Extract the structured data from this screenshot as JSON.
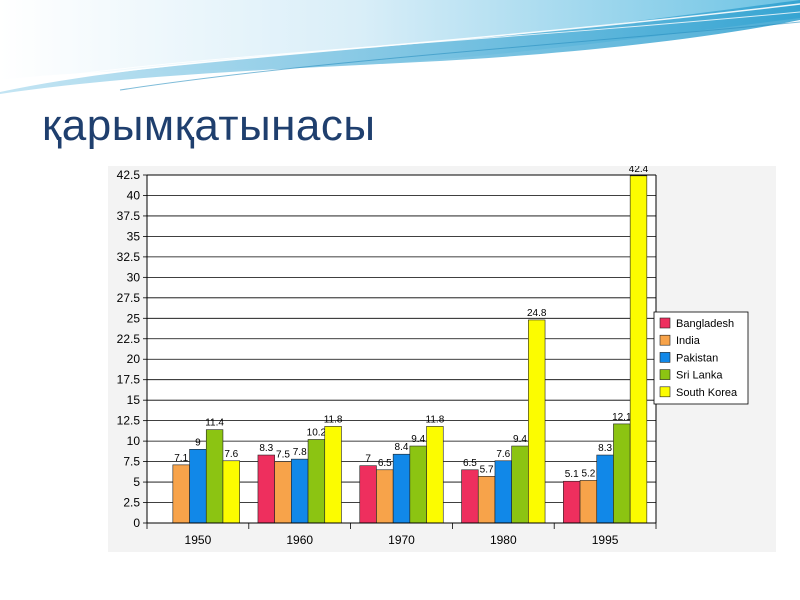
{
  "slide": {
    "title": "қарымқатынасы"
  },
  "colors": {
    "title": "#1f3f6e",
    "banner_light": "#dff1f8",
    "banner_dark": "#3aa7d2"
  },
  "chart_data": {
    "type": "bar",
    "categories": [
      "1950",
      "1960",
      "1970",
      "1980",
      "1995"
    ],
    "series": [
      {
        "name": "Bangladesh",
        "color": "#ee2f5e",
        "values": [
          null,
          8.3,
          7,
          6.5,
          5.1
        ]
      },
      {
        "name": "India",
        "color": "#f7a34a",
        "values": [
          7.1,
          7.5,
          6.5,
          5.7,
          5.2
        ]
      },
      {
        "name": "Pakistan",
        "color": "#1188e8",
        "values": [
          9,
          7.8,
          8.4,
          7.6,
          8.3
        ]
      },
      {
        "name": "Sri Lanka",
        "color": "#8cc412",
        "values": [
          11.4,
          10.2,
          9.4,
          9.4,
          12.1
        ]
      },
      {
        "name": "South Korea",
        "color": "#fcfc00",
        "values": [
          7.6,
          11.8,
          11.8,
          24.8,
          42.4
        ]
      }
    ],
    "data_labels": [
      [
        "",
        "8.3",
        "7",
        "6.5",
        "5.1"
      ],
      [
        "7.1",
        "7.5",
        "6.5",
        "5.7",
        "5.2"
      ],
      [
        "9",
        "7.8",
        "8.4",
        "7.6",
        "8.3"
      ],
      [
        "11.4",
        "10.2",
        "9.4",
        "9.4",
        "12.1"
      ],
      [
        "7.6",
        "11.8",
        "11.8",
        "24.8",
        "42.4"
      ]
    ],
    "yticks": [
      "0",
      "2.5",
      "5",
      "7.5",
      "10",
      "12.5",
      "15",
      "17.5",
      "20",
      "22.5",
      "25",
      "27.5",
      "30",
      "32.5",
      "35",
      "37.5",
      "40",
      "42.5"
    ],
    "ylim": [
      0,
      42.5
    ],
    "ystep": 2.5,
    "grid": true,
    "legend_position": "right",
    "title": "",
    "xlabel": "",
    "ylabel": ""
  }
}
